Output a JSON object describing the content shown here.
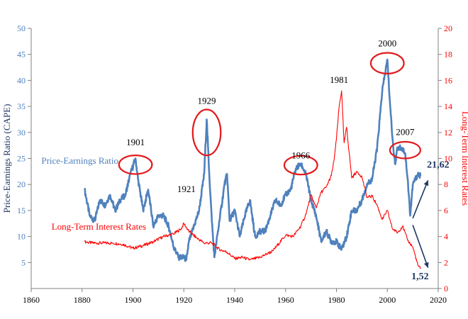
{
  "chart_data": {
    "type": "line",
    "title": "",
    "xlabel": "",
    "x_ticks": [
      "1860",
      "1880",
      "1900",
      "1920",
      "1940",
      "1960",
      "1980",
      "2000",
      "2020"
    ],
    "xlim": [
      1860,
      2020
    ],
    "y_left": {
      "label": "Price-Earnings Ratio (CAPE)",
      "ticks": [
        "5",
        "10",
        "15",
        "20",
        "25",
        "30",
        "35",
        "40",
        "45",
        "50"
      ],
      "ylim": [
        0,
        50
      ],
      "color": "#4f81bd"
    },
    "y_right": {
      "label": "Long-Term Interest Rates",
      "ticks": [
        "0",
        "2",
        "4",
        "6",
        "8",
        "10",
        "12",
        "14",
        "16",
        "18",
        "20"
      ],
      "ylim": [
        0,
        20
      ],
      "color": "#ff0000"
    },
    "series": [
      {
        "name": "Price-Earnings Ratio",
        "axis": "left",
        "color": "#4f81bd",
        "x": [
          1881,
          1883,
          1885,
          1887,
          1889,
          1891,
          1893,
          1895,
          1897,
          1899,
          1901,
          1902,
          1904,
          1906,
          1908,
          1910,
          1912,
          1914,
          1916,
          1918,
          1920,
          1921,
          1922,
          1924,
          1926,
          1928,
          1929,
          1930,
          1931,
          1932,
          1934,
          1936,
          1937,
          1938,
          1940,
          1942,
          1944,
          1946,
          1948,
          1950,
          1952,
          1954,
          1956,
          1958,
          1960,
          1962,
          1964,
          1966,
          1968,
          1970,
          1972,
          1974,
          1976,
          1978,
          1980,
          1982,
          1984,
          1986,
          1988,
          1990,
          1992,
          1994,
          1996,
          1998,
          2000,
          2001,
          2002,
          2003,
          2004,
          2006,
          2007,
          2008,
          2009,
          2010,
          2012,
          2013
        ],
        "values": [
          19,
          14,
          13,
          17,
          16,
          18,
          15,
          17,
          18,
          22,
          25,
          21,
          15,
          19,
          12,
          14,
          14,
          12,
          8,
          6,
          6,
          5.5,
          9,
          12,
          15,
          22,
          32.5,
          22,
          13,
          6,
          13,
          20,
          22,
          13,
          15,
          10,
          14,
          17,
          10,
          11,
          11,
          14,
          17,
          16,
          18,
          19,
          23,
          24,
          22,
          17,
          14,
          9,
          11,
          9,
          9,
          7.5,
          10,
          15,
          15,
          17,
          20,
          21,
          27,
          38,
          44,
          36,
          29,
          24,
          27,
          27,
          26,
          21,
          14,
          20,
          22,
          21.62
        ],
        "end_label": "21,62"
      },
      {
        "name": "Long-Term Interest Rates",
        "axis": "right",
        "color": "#ff0000",
        "x": [
          1881,
          1884,
          1888,
          1892,
          1896,
          1900,
          1904,
          1908,
          1912,
          1916,
          1919,
          1920,
          1922,
          1925,
          1928,
          1931,
          1934,
          1937,
          1940,
          1943,
          1946,
          1950,
          1955,
          1960,
          1963,
          1966,
          1968,
          1970,
          1972,
          1974,
          1976,
          1978,
          1979,
          1980,
          1981,
          1982,
          1983,
          1984,
          1986,
          1988,
          1990,
          1992,
          1994,
          1996,
          1998,
          2000,
          2002,
          2004,
          2006,
          2008,
          2010,
          2012,
          2013
        ],
        "values": [
          3.6,
          3.5,
          3.5,
          3.5,
          3.4,
          3.1,
          3.3,
          3.6,
          4.0,
          4.2,
          4.6,
          5.0,
          4.4,
          3.9,
          3.5,
          3.5,
          3.0,
          2.8,
          2.3,
          2.4,
          2.2,
          2.4,
          2.9,
          4.1,
          4.0,
          4.8,
          5.7,
          7.2,
          6.2,
          7.4,
          7.8,
          8.7,
          9.8,
          11.5,
          13.9,
          15.2,
          11.2,
          12.4,
          8.5,
          9.0,
          8.6,
          7.0,
          7.1,
          6.4,
          5.3,
          6.0,
          4.6,
          4.3,
          4.8,
          3.7,
          3.2,
          1.8,
          1.52
        ],
        "end_label": "1,52"
      }
    ],
    "annotations": {
      "years": [
        {
          "label": "1901",
          "x": 1901,
          "y": 27.5,
          "circled": true
        },
        {
          "label": "1929",
          "x": 1929,
          "y": 35.5,
          "circled": true
        },
        {
          "label": "1921",
          "x": 1921,
          "y": 18.5,
          "circled": false
        },
        {
          "label": "1966",
          "x": 1966,
          "y": 25,
          "circled": true
        },
        {
          "label": "1981",
          "x": 1981,
          "y": 39.5,
          "circled": false
        },
        {
          "label": "2000",
          "x": 2000,
          "y": 46.5,
          "circled": true
        },
        {
          "label": "2007",
          "x": 2007,
          "y": 29.5,
          "circled": true
        }
      ],
      "series_labels": [
        {
          "text": "Price-Earnings Ratio",
          "series": 0,
          "x": 1864,
          "y": 24
        },
        {
          "text": "Long-Term Interest Rates",
          "series": 1,
          "x": 1868,
          "y": 11.3
        }
      ],
      "ellipses": [
        {
          "cx": 1901,
          "cy": 23.8,
          "rx": 6.5,
          "ry": 1.8
        },
        {
          "cx": 1929,
          "cy": 30,
          "rx": 5.5,
          "ry": 4.4
        },
        {
          "cx": 1966,
          "cy": 23.7,
          "rx": 6.5,
          "ry": 1.8
        },
        {
          "cx": 2000,
          "cy": 43.3,
          "rx": 6.5,
          "ry": 2.0
        },
        {
          "cx": 2007,
          "cy": 26.6,
          "rx": 6.0,
          "ry": 1.6
        }
      ],
      "arrows": [
        {
          "from_x": 2010,
          "from_y": 13.5,
          "to_x": 2016,
          "to_y": 20.8
        },
        {
          "from_x": 2010,
          "from_y": 12.2,
          "to_x": 2016,
          "to_y": 4.0
        }
      ]
    },
    "grid": false,
    "legend": "none"
  }
}
